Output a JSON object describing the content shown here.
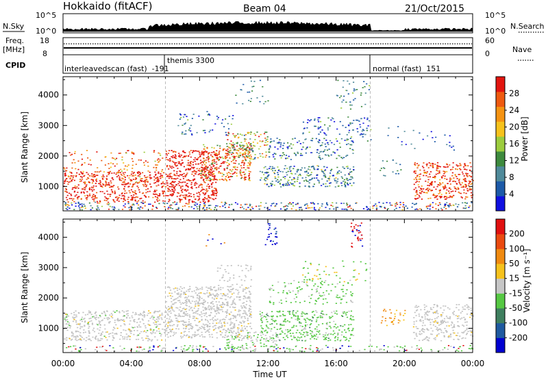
{
  "header": {
    "station": "Hokkaido (fitACF)",
    "beam": "Beam 04",
    "date": "21/Oct/2015"
  },
  "noise_panel": {
    "left_label": "N.Sky",
    "right_label": "N.Search",
    "left_ticks": [
      "10^5",
      "10^0"
    ],
    "right_ticks": [
      "10^5",
      "10^0"
    ]
  },
  "freq_panel": {
    "left_label_1": "Freq.",
    "left_label_2": "[MHz]",
    "left_ticks": [
      "18",
      "8"
    ],
    "right_ticks": [
      "60",
      "0"
    ],
    "right_label": "Nave"
  },
  "cpid_panel": {
    "label": "CPID",
    "segments": [
      {
        "start_hour": 0,
        "text": "interleavedscan (fast)  -191"
      },
      {
        "start_hour": 6,
        "text": "themis 3300"
      },
      {
        "start_hour": 18,
        "text": "normal (fast)  151"
      }
    ]
  },
  "chart_data": [
    {
      "type": "heatmap",
      "quantity": "Power",
      "ylabel": "Slant Range [km]",
      "xlabel": "",
      "xlim": [
        "00:00",
        "24:00"
      ],
      "ylim": [
        200,
        4600
      ],
      "x_ticks": [
        "00:00",
        "04:00",
        "08:00",
        "12:00",
        "16:00",
        "20:00",
        "00:00"
      ],
      "y_ticks": [
        1000,
        2000,
        3000,
        4000
      ],
      "colorbar": {
        "label": "Power [dB]",
        "ticks": [
          4,
          8,
          12,
          16,
          20,
          24,
          28
        ],
        "range": [
          0,
          32
        ],
        "colors": [
          "#1010e0",
          "#1c5aa8",
          "#4f8a9a",
          "#3e8a3e",
          "#9ccc3e",
          "#f6c21c",
          "#f59312",
          "#ee5a10",
          "#e2150f"
        ]
      }
    },
    {
      "type": "heatmap",
      "quantity": "Velocity",
      "ylabel": "Slant Range [km]",
      "xlabel": "Time UT",
      "xlim": [
        "00:00",
        "24:00"
      ],
      "ylim": [
        200,
        4600
      ],
      "x_ticks": [
        "00:00",
        "04:00",
        "08:00",
        "12:00",
        "16:00",
        "20:00",
        "00:00"
      ],
      "y_ticks": [
        1000,
        2000,
        3000,
        4000
      ],
      "colorbar": {
        "label": "Velocity [m s⁻¹]",
        "ticks": [
          200,
          100,
          50,
          15,
          -15,
          -50,
          -100,
          -200
        ],
        "range": [
          -250,
          250
        ],
        "colors": [
          "#0000d0",
          "#1f5aa0",
          "#3f7f5f",
          "#56c843",
          "#c6c6c6",
          "#f6c21c",
          "#f08a10",
          "#ea4a10",
          "#e01010"
        ]
      }
    }
  ],
  "colors": {
    "boundary_line": "#bbbbbb",
    "ground_scatter_gray": "#c2c2c2"
  }
}
